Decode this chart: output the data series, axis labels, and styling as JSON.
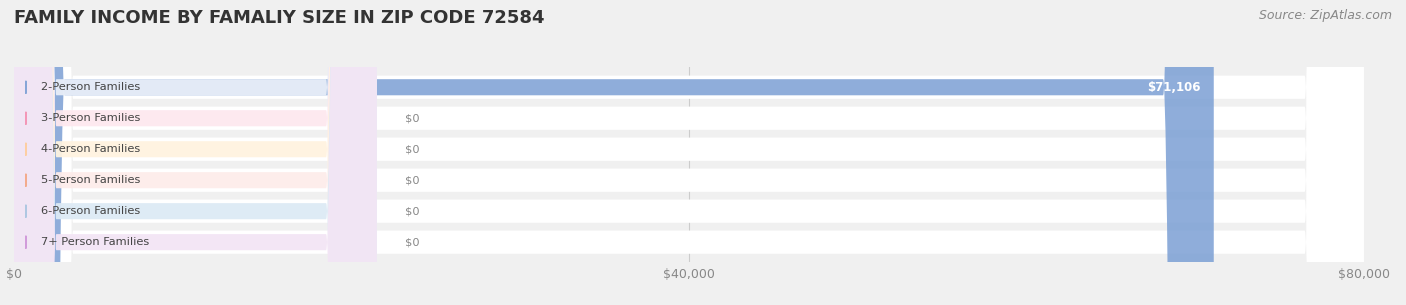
{
  "title": "FAMILY INCOME BY FAMALIY SIZE IN ZIP CODE 72584",
  "source": "Source: ZipAtlas.com",
  "categories": [
    "2-Person Families",
    "3-Person Families",
    "4-Person Families",
    "5-Person Families",
    "6-Person Families",
    "7+ Person Families"
  ],
  "values": [
    71106,
    0,
    0,
    0,
    0,
    0
  ],
  "bar_colors": [
    "#7b9fd4",
    "#f48fb1",
    "#ffcc99",
    "#f4a582",
    "#a8c4e0",
    "#ce93d8"
  ],
  "label_bg_colors": [
    "#e8eef8",
    "#fde8ef",
    "#fff3e0",
    "#fdecea",
    "#ddeaf5",
    "#f3e5f5"
  ],
  "xlim": [
    0,
    80000
  ],
  "xticks": [
    0,
    40000,
    80000
  ],
  "xtick_labels": [
    "$0",
    "$40,000",
    "$80,000"
  ],
  "bar_value_labels": [
    "$71,106",
    "$0",
    "$0",
    "$0",
    "$0",
    "$0"
  ],
  "background_color": "#f0f0f0",
  "title_fontsize": 13,
  "source_fontsize": 9
}
